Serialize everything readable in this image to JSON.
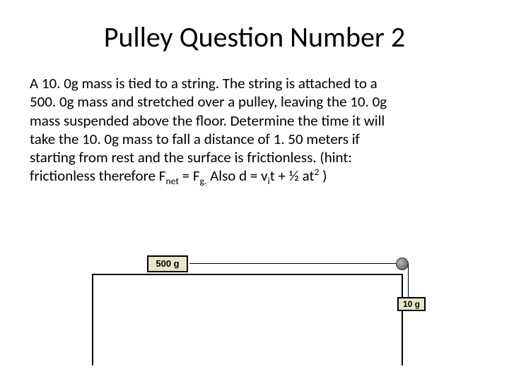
{
  "title": "Pulley Question Number 2",
  "body": {
    "line1": "A 10. 0g mass is tied to a string. The string is attached to a",
    "line2": "500. 0g mass and stretched over a pulley, leaving the 10. 0g",
    "line3": "mass suspended above the floor.  Determine the time it will",
    "line4": "take the 10. 0g mass to fall a distance of 1. 50 meters if",
    "line5": "starting from rest and the surface is frictionless. (hint:",
    "line6_a": "frictionless therefore F",
    "line6_sub1": "net",
    "line6_b": " = F",
    "line6_sub2": "g.",
    "line6_c": " Also d = v",
    "line6_sub3": "i",
    "line6_d": "t + ½ at",
    "line6_sup": "2",
    "line6_e": " )"
  },
  "diagram": {
    "block500_label": "500 g",
    "block10_label": "10 g",
    "colors": {
      "block_fill": "#e8e6c8",
      "line": "#000000"
    }
  }
}
